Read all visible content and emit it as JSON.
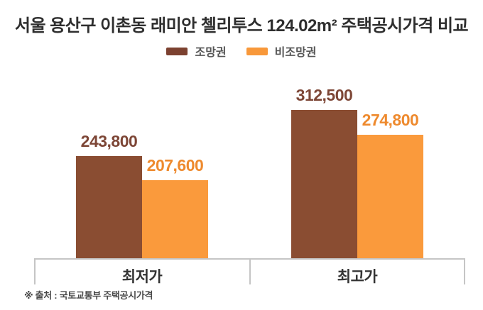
{
  "title": "서울 용산구 이촌동 래미안 첼리투스 124.02m² 주택공시가격 비교",
  "legend": [
    {
      "label": "조망권",
      "color": "#7c4130"
    },
    {
      "label": "비조망권",
      "color": "#f8983a"
    }
  ],
  "chart_data": {
    "type": "bar",
    "title": "서울 용산구 이촌동 래미안 첼리투스 124.02m² 주택공시가격 비교",
    "categories": [
      "최저가",
      "최고가"
    ],
    "series": [
      {
        "name": "조망권",
        "color": "#8a4d32",
        "label_color": "#7d4636",
        "values": [
          243800,
          312500
        ],
        "labels": [
          "243,800",
          "312,500"
        ]
      },
      {
        "name": "비조망권",
        "color": "#fa9a3c",
        "label_color": "#ee8a2e",
        "values": [
          207600,
          274800
        ],
        "labels": [
          "207,600",
          "274,800"
        ]
      }
    ],
    "xlabel": "",
    "ylabel": "",
    "ylim": [
      90000,
      320000
    ],
    "grid": false,
    "legend_position": "top",
    "value_labels_shown": true
  },
  "footer": {
    "source_note": "※ 출처 : 국토교통부 주택공시가격"
  }
}
